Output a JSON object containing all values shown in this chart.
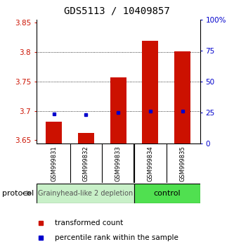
{
  "title": "GDS5113 / 10409857",
  "samples": [
    "GSM999831",
    "GSM999832",
    "GSM999833",
    "GSM999834",
    "GSM999835"
  ],
  "red_values": [
    3.682,
    3.662,
    3.757,
    3.82,
    3.802
  ],
  "blue_values": [
    3.695,
    3.693,
    3.697,
    3.7,
    3.699
  ],
  "ylim_left": [
    3.645,
    3.855
  ],
  "ylim_right": [
    0,
    100
  ],
  "yticks_left": [
    3.65,
    3.7,
    3.75,
    3.8,
    3.85
  ],
  "yticks_right": [
    0,
    25,
    50,
    75,
    100
  ],
  "ytick_labels_left": [
    "3.65",
    "3.7",
    "3.75",
    "3.8",
    "3.85"
  ],
  "ytick_labels_right": [
    "0",
    "25",
    "50",
    "75",
    "100%"
  ],
  "group1_label": "Grainyhead-like 2 depletion",
  "group2_label": "control",
  "group1_color": "#c8f0c8",
  "group2_color": "#50e050",
  "bar_color": "#cc1100",
  "dot_color": "#0000cc",
  "protocol_label": "protocol",
  "legend_red": "transformed count",
  "legend_blue": "percentile rank within the sample",
  "background_color": "#ffffff",
  "title_fontsize": 10,
  "tick_fontsize": 7.5,
  "sample_fontsize": 6,
  "group_fontsize": 7,
  "legend_fontsize": 7.5
}
